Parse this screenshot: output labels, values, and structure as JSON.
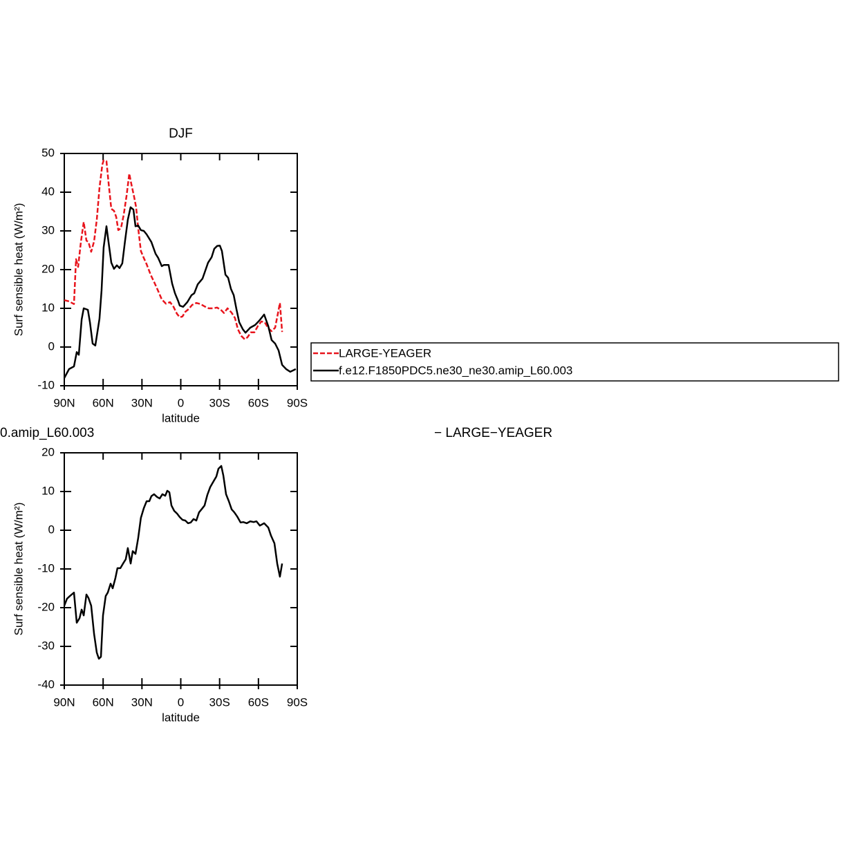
{
  "chart_data": [
    {
      "type": "line",
      "title": "DJF",
      "ylabel": "Surf sensible heat (W/m²)",
      "xlabel": "latitude",
      "xlim": [
        90,
        -90
      ],
      "xticks": [
        {
          "value": 90,
          "label": "90N"
        },
        {
          "value": 60,
          "label": "60N"
        },
        {
          "value": 30,
          "label": "30N"
        },
        0,
        {
          "value": -30,
          "label": "30S"
        },
        {
          "value": -60,
          "label": "60S"
        },
        {
          "value": -90,
          "label": "90S"
        }
      ],
      "ylim": [
        -10,
        50
      ],
      "yticks": [
        -10,
        0,
        10,
        20,
        30,
        40,
        50
      ],
      "legend": "outside-right",
      "series": [
        {
          "name": "LARGE-YEAGER",
          "color": "#e8141c",
          "style": "dashed",
          "x": [
            90,
            86.3,
            82.5,
            80.9,
            79.3,
            77.2,
            75.0,
            72.9,
            71.3,
            69.2,
            67.0,
            64.9,
            62.8,
            60.6,
            59.6,
            57.4,
            55.8,
            53.7,
            51.6,
            49.9,
            48.3,
            46.2,
            44.1,
            41.9,
            39.8,
            38.2,
            36.1,
            34.5,
            32.9,
            30.8,
            28.6,
            26.4,
            23.2,
            20.6,
            17.9,
            14.7,
            11.5,
            8.3,
            5.6,
            3.0,
            0.8,
            -1.3,
            -3.5,
            -6.1,
            -8.8,
            -12.0,
            -15.2,
            -18.4,
            -21.6,
            -24.8,
            -28.1,
            -31.3,
            -33.4,
            -36.1,
            -39.2,
            -41.9,
            -44.1,
            -46.7,
            -49.4,
            -51.5,
            -54.2,
            -56.9,
            -59.5,
            -62.2,
            -64.9,
            -67.6,
            -70.2,
            -72.9,
            -75.6,
            -76.6,
            -78.3
          ],
          "values": [
            12.1,
            11.8,
            11.1,
            22.7,
            20.7,
            27.1,
            32.3,
            27.5,
            27.1,
            24.6,
            27.3,
            32.9,
            41.1,
            47.1,
            48.2,
            48.0,
            42.5,
            35.7,
            35.2,
            33.6,
            30.2,
            30.7,
            34.1,
            39.1,
            44.8,
            42.1,
            38.9,
            36.1,
            30.7,
            24.8,
            23.0,
            21.4,
            18.6,
            16.8,
            14.8,
            12.3,
            11.2,
            11.6,
            10.4,
            8.6,
            7.7,
            7.9,
            9.1,
            9.8,
            10.9,
            11.4,
            11.1,
            10.5,
            10.0,
            10.0,
            10.2,
            9.5,
            8.8,
            10.0,
            8.9,
            7.5,
            4.6,
            2.9,
            2.0,
            2.5,
            3.8,
            3.8,
            5.4,
            6.6,
            6.4,
            4.8,
            4.1,
            5.0,
            9.6,
            11.4,
            3.9
          ]
        },
        {
          "name": "f.e12.F1850PDC5.ne30_ne30.amip_L60.003",
          "color": "#000000",
          "style": "solid",
          "x": [
            90,
            86.3,
            82.5,
            80.4,
            78.8,
            76.6,
            75.0,
            71.8,
            70.2,
            68.1,
            66.0,
            62.8,
            61.2,
            59.6,
            57.4,
            55.8,
            53.7,
            51.6,
            49.4,
            47.3,
            45.2,
            43.1,
            40.9,
            38.8,
            36.6,
            35.0,
            32.9,
            30.8,
            28.6,
            26.4,
            22.7,
            19.5,
            17.4,
            14.7,
            13.1,
            9.4,
            6.7,
            4.5,
            1.9,
            0.8,
            -1.8,
            -5.1,
            -8.3,
            -10.4,
            -13.1,
            -16.8,
            -19.0,
            -21.1,
            -23.8,
            -25.9,
            -28.1,
            -30.2,
            -31.8,
            -34.5,
            -36.6,
            -38.8,
            -40.9,
            -43.0,
            -45.2,
            -47.9,
            -50.0,
            -53.7,
            -57.4,
            -60.6,
            -64.4,
            -67.6,
            -70.2,
            -72.9,
            -75.6,
            -78.3,
            -81.4,
            -84.6,
            -88.9
          ],
          "values": [
            -8.0,
            -5.7,
            -5.0,
            -1.3,
            -2.0,
            7.1,
            10.0,
            9.6,
            6.4,
            0.9,
            0.4,
            7.3,
            14.6,
            25.7,
            31.2,
            27.1,
            21.8,
            20.2,
            21.1,
            20.4,
            21.6,
            27.3,
            32.9,
            36.1,
            35.5,
            31.2,
            31.4,
            30.2,
            30.0,
            29.1,
            27.1,
            24.1,
            23.0,
            20.9,
            21.2,
            21.2,
            16.4,
            13.9,
            11.8,
            10.7,
            10.4,
            11.6,
            13.4,
            13.9,
            16.2,
            17.7,
            19.8,
            21.8,
            23.2,
            25.4,
            26.1,
            26.2,
            24.8,
            18.7,
            17.9,
            15.0,
            13.4,
            9.8,
            6.4,
            4.6,
            3.7,
            5.0,
            5.7,
            6.8,
            8.4,
            5.4,
            1.8,
            0.9,
            -0.9,
            -4.6,
            -5.7,
            -6.4,
            -5.7
          ]
        }
      ]
    },
    {
      "type": "line",
      "title_parts": [
        "0.amip_L60.003",
        "− LARGE−YEAGER"
      ],
      "ylabel": "Surf sensible heat (W/m²)",
      "xlabel": "latitude",
      "xlim": [
        90,
        -90
      ],
      "xticks": [
        {
          "value": 90,
          "label": "90N"
        },
        {
          "value": 60,
          "label": "60N"
        },
        {
          "value": 30,
          "label": "30N"
        },
        0,
        {
          "value": -30,
          "label": "30S"
        },
        {
          "value": -60,
          "label": "60S"
        },
        {
          "value": -90,
          "label": "90S"
        }
      ],
      "ylim": [
        -40,
        20
      ],
      "yticks": [
        -40,
        -30,
        -20,
        -10,
        0,
        10,
        20
      ],
      "series": [
        {
          "color": "#000000",
          "style": "solid",
          "x": [
            90,
            87.9,
            85.7,
            82.5,
            80.4,
            78.2,
            76.6,
            75.0,
            72.9,
            71.3,
            69.2,
            67.0,
            64.9,
            63.3,
            61.7,
            60.1,
            58.0,
            56.4,
            54.2,
            52.6,
            50.5,
            48.9,
            46.7,
            44.6,
            42.5,
            40.9,
            38.7,
            37.1,
            35.0,
            32.9,
            30.8,
            28.6,
            26.4,
            24.3,
            22.7,
            20.6,
            18.4,
            16.3,
            14.2,
            12.0,
            10.4,
            8.8,
            7.2,
            5.1,
            2.9,
            0.8,
            -1.3,
            -3.5,
            -5.6,
            -7.7,
            -9.9,
            -12.0,
            -14.1,
            -16.3,
            -18.4,
            -20.5,
            -22.7,
            -25.4,
            -27.5,
            -29.1,
            -31.3,
            -32.9,
            -35.0,
            -37.1,
            -39.3,
            -41.4,
            -43.5,
            -46.2,
            -48.3,
            -51.0,
            -53.7,
            -56.3,
            -58.5,
            -61.1,
            -64.4,
            -67.6,
            -69.7,
            -72.4,
            -74.5,
            -76.6,
            -78.3
          ],
          "values": [
            -19.5,
            -17.7,
            -17.0,
            -16.1,
            -23.9,
            -22.7,
            -20.5,
            -22.0,
            -16.6,
            -17.5,
            -19.5,
            -26.8,
            -31.6,
            -33.2,
            -32.7,
            -22.0,
            -17.0,
            -16.1,
            -13.8,
            -15.0,
            -12.3,
            -9.8,
            -9.8,
            -8.6,
            -7.5,
            -4.6,
            -8.6,
            -5.4,
            -6.1,
            -2.0,
            3.2,
            5.7,
            7.5,
            7.5,
            8.8,
            9.3,
            8.6,
            8.2,
            9.3,
            8.9,
            10.2,
            9.8,
            6.4,
            5.0,
            4.3,
            3.4,
            2.7,
            2.5,
            1.8,
            2.0,
            2.9,
            2.5,
            4.6,
            5.5,
            6.4,
            9.1,
            11.1,
            12.7,
            13.9,
            15.9,
            16.6,
            14.1,
            9.3,
            7.5,
            5.4,
            4.6,
            3.6,
            2.0,
            2.1,
            1.8,
            2.3,
            2.1,
            2.3,
            1.2,
            1.8,
            0.7,
            -1.4,
            -3.4,
            -8.6,
            -12.0,
            -8.6
          ]
        }
      ]
    }
  ]
}
